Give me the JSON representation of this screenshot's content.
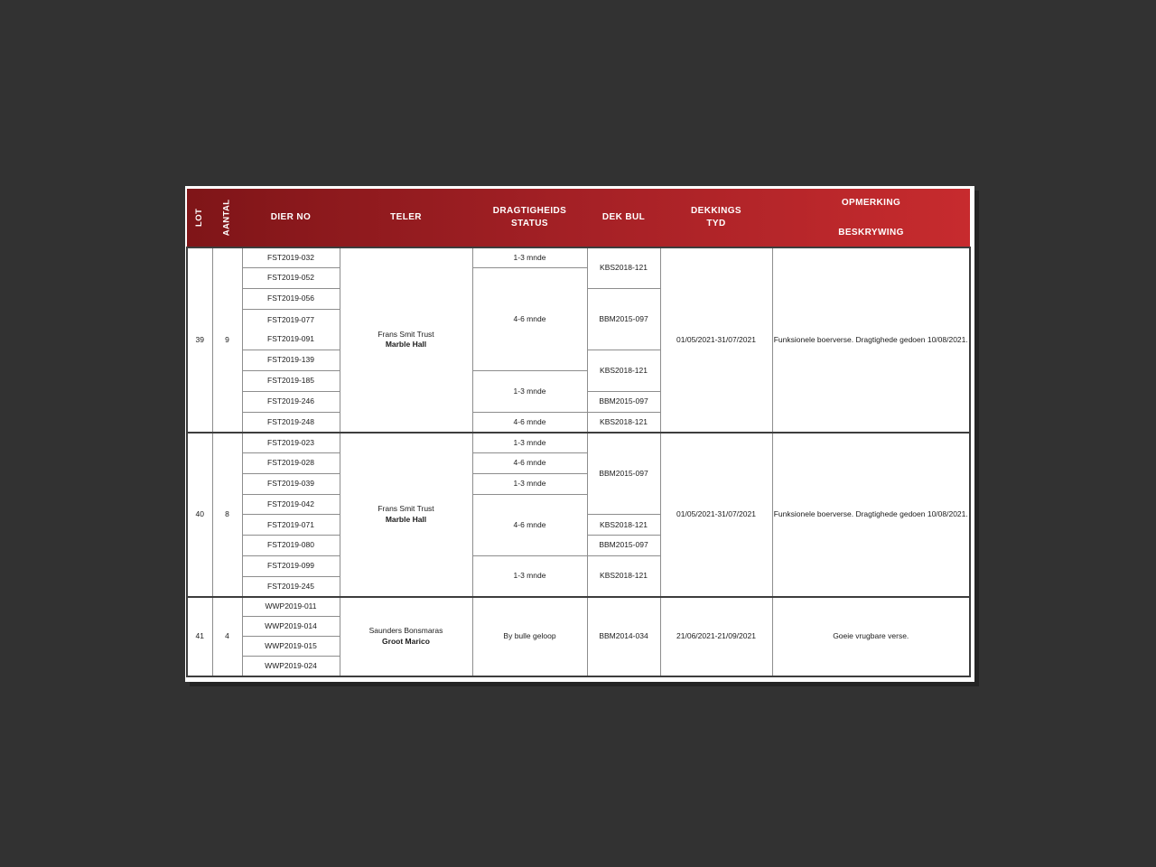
{
  "colors": {
    "viewer_background": "#323232",
    "page_background": "#ffffff",
    "header_gradient_left": "#7f1518",
    "header_gradient_right": "#c72b2e",
    "header_text": "#ffffff",
    "grid_line": "#8d8d8d",
    "section_line": "#3d3d3d",
    "body_text": "#1b1b1b"
  },
  "header": {
    "columns": [
      {
        "id": "lot",
        "lines": [
          "LOT"
        ]
      },
      {
        "id": "aantal",
        "lines": [
          "AANTAL"
        ]
      },
      {
        "id": "dier-no",
        "lines": [
          "DIER NO"
        ]
      },
      {
        "id": "teler",
        "lines": [
          "TELER"
        ]
      },
      {
        "id": "dragtigheids-status",
        "lines": [
          "DRAGTIGHEIDS",
          "STATUS"
        ]
      },
      {
        "id": "dek-bul",
        "lines": [
          "DEK BUL"
        ]
      },
      {
        "id": "dekkings-tyd",
        "lines": [
          "DEKKINGS",
          "TYD"
        ]
      },
      {
        "id": "opmerking-beskrywing",
        "lines": [
          "OPMERKING",
          "BESKRYWING"
        ]
      }
    ]
  },
  "lots": [
    {
      "lot": "39",
      "aantal": "9",
      "teler": {
        "name": "Frans Smit Trust",
        "location": "Marble Hall"
      },
      "dier_no": [
        {
          "labels": [
            "FST2019-032"
          ],
          "span": 1
        },
        {
          "labels": [
            "FST2019-052"
          ],
          "span": 1
        },
        {
          "labels": [
            "FST2019-056"
          ],
          "span": 1
        },
        {
          "labels": [
            "FST2019-077",
            "FST2019-091"
          ],
          "span": 2
        },
        {
          "labels": [
            "FST2019-139"
          ],
          "span": 1
        },
        {
          "labels": [
            "FST2019-185"
          ],
          "span": 1
        },
        {
          "labels": [
            "FST2019-246"
          ],
          "span": 1
        },
        {
          "labels": [
            "FST2019-248"
          ],
          "span": 1
        }
      ],
      "dragtigheids_status": [
        {
          "label": "1-3 mnde",
          "span": 1
        },
        {
          "label": "4-6 mnde",
          "span": 5
        },
        {
          "label": "1-3 mnde",
          "span": 2
        },
        {
          "label": "4-6 mnde",
          "span": 1
        }
      ],
      "dek_bul": [
        {
          "label": "KBS2018-121",
          "span": 2
        },
        {
          "label": "BBM2015-097",
          "span": 3
        },
        {
          "label": "KBS2018-121",
          "span": 2
        },
        {
          "label": "BBM2015-097",
          "span": 1
        },
        {
          "label": "KBS2018-121",
          "span": 1
        }
      ],
      "dekkings_tyd": "01/05/2021-31/07/2021",
      "opmerking": "Funksionele boerverse. Dragtighede gedoen  10/08/2021."
    },
    {
      "lot": "40",
      "aantal": "8",
      "teler": {
        "name": "Frans Smit Trust",
        "location": "Marble Hall"
      },
      "dier_no": [
        {
          "labels": [
            "FST2019-023"
          ],
          "span": 1
        },
        {
          "labels": [
            "FST2019-028"
          ],
          "span": 1
        },
        {
          "labels": [
            "FST2019-039"
          ],
          "span": 1
        },
        {
          "labels": [
            "FST2019-042"
          ],
          "span": 1
        },
        {
          "labels": [
            "FST2019-071"
          ],
          "span": 1
        },
        {
          "labels": [
            "FST2019-080"
          ],
          "span": 1
        },
        {
          "labels": [
            "FST2019-099"
          ],
          "span": 1
        },
        {
          "labels": [
            "FST2019-245"
          ],
          "span": 1
        }
      ],
      "dragtigheids_status": [
        {
          "label": "1-3 mnde",
          "span": 1
        },
        {
          "label": "4-6 mnde",
          "span": 1
        },
        {
          "label": "1-3 mnde",
          "span": 1
        },
        {
          "label": "4-6 mnde",
          "span": 3
        },
        {
          "label": "1-3 mnde",
          "span": 2
        }
      ],
      "dek_bul": [
        {
          "label": "BBM2015-097",
          "span": 4
        },
        {
          "label": "KBS2018-121",
          "span": 1
        },
        {
          "label": "BBM2015-097",
          "span": 1
        },
        {
          "label": "KBS2018-121",
          "span": 2
        }
      ],
      "dekkings_tyd": "01/05/2021-31/07/2021",
      "opmerking": "Funksionele boerverse. Dragtighede gedoen  10/08/2021."
    },
    {
      "lot": "41",
      "aantal": "4",
      "teler": {
        "name": "Saunders Bonsmaras",
        "location": "Groot Marico"
      },
      "dier_no": [
        {
          "labels": [
            "WWP2019-011"
          ],
          "span": 1
        },
        {
          "labels": [
            "WWP2019-014"
          ],
          "span": 1
        },
        {
          "labels": [
            "WWP2019-015"
          ],
          "span": 1
        },
        {
          "labels": [
            "WWP2019-024"
          ],
          "span": 1
        }
      ],
      "dragtigheids_status": [
        {
          "label": "By bulle geloop",
          "span": 4
        }
      ],
      "dek_bul": [
        {
          "label": "BBM2014-034",
          "span": 4
        }
      ],
      "dekkings_tyd": "21/06/2021-21/09/2021",
      "opmerking": "Goeie vrugbare verse."
    }
  ]
}
